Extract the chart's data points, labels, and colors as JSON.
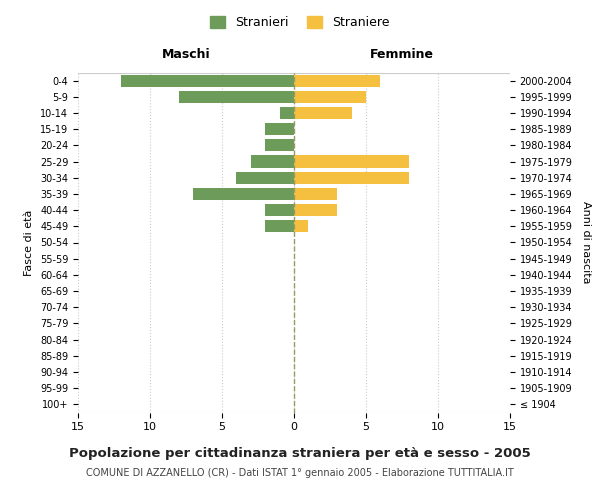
{
  "age_groups": [
    "100+",
    "95-99",
    "90-94",
    "85-89",
    "80-84",
    "75-79",
    "70-74",
    "65-69",
    "60-64",
    "55-59",
    "50-54",
    "45-49",
    "40-44",
    "35-39",
    "30-34",
    "25-29",
    "20-24",
    "15-19",
    "10-14",
    "5-9",
    "0-4"
  ],
  "birth_years": [
    "≤ 1904",
    "1905-1909",
    "1910-1914",
    "1915-1919",
    "1920-1924",
    "1925-1929",
    "1930-1934",
    "1935-1939",
    "1940-1944",
    "1945-1949",
    "1950-1954",
    "1955-1959",
    "1960-1964",
    "1965-1969",
    "1970-1974",
    "1975-1979",
    "1980-1984",
    "1985-1989",
    "1990-1994",
    "1995-1999",
    "2000-2004"
  ],
  "maschi": [
    0,
    0,
    0,
    0,
    0,
    0,
    0,
    0,
    0,
    0,
    0,
    2,
    2,
    7,
    4,
    3,
    2,
    2,
    1,
    8,
    12
  ],
  "femmine": [
    0,
    0,
    0,
    0,
    0,
    0,
    0,
    0,
    0,
    0,
    0,
    1,
    3,
    3,
    8,
    8,
    0,
    0,
    4,
    5,
    6
  ],
  "color_maschi": "#6d9b5a",
  "color_femmine": "#f5c040",
  "title": "Popolazione per cittadinanza straniera per età e sesso - 2005",
  "subtitle": "COMUNE DI AZZANELLO (CR) - Dati ISTAT 1° gennaio 2005 - Elaborazione TUTTITALIA.IT",
  "xlabel_left": "Maschi",
  "xlabel_right": "Femmine",
  "ylabel_left": "Fasce di età",
  "ylabel_right": "Anni di nascita",
  "legend_maschi": "Stranieri",
  "legend_femmine": "Straniere",
  "xlim": 15,
  "background_color": "#ffffff",
  "grid_color": "#cccccc",
  "dashed_line_color": "#999966"
}
